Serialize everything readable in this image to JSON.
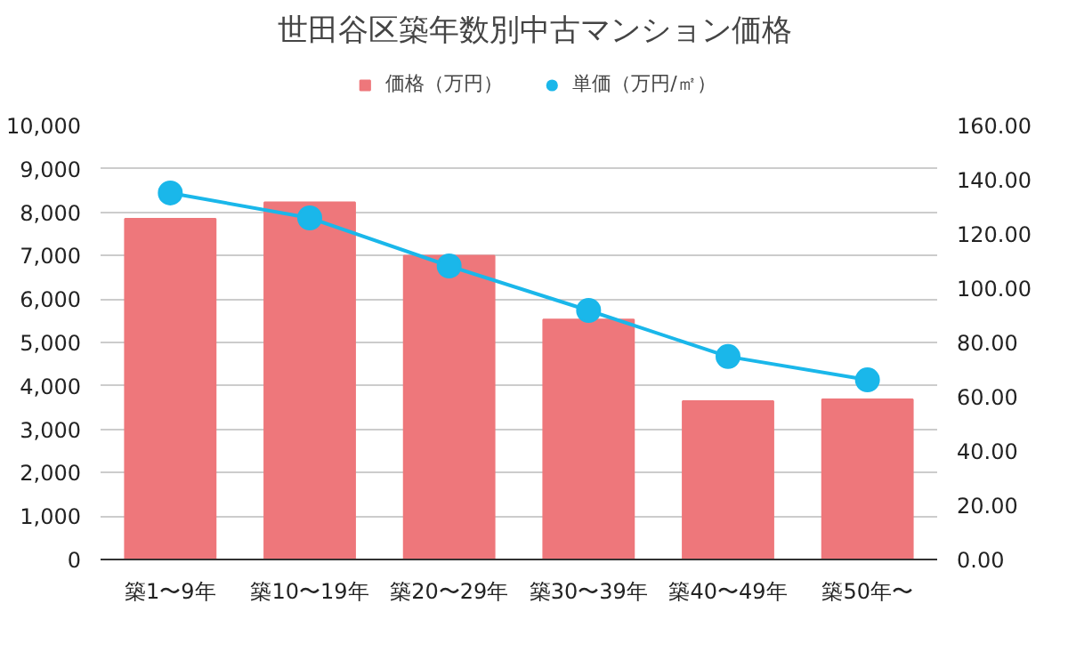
{
  "chart_data": {
    "type": "bar",
    "title": "世田谷区築年数別中古マンション価格",
    "categories": [
      "築1〜9年",
      "築10〜19年",
      "築20〜29年",
      "築30〜39年",
      "築40〜49年",
      "築50年〜"
    ],
    "series": [
      {
        "name": "価格（万円）",
        "color": "#ee777b",
        "values": [
          7850,
          8230,
          7000,
          5530,
          3650,
          3690
        ]
      },
      {
        "name": "単価（万円/㎡）",
        "type": "line",
        "axis": "y2",
        "color": "#1ab7ea",
        "values": [
          135.1,
          125.9,
          108.2,
          91.8,
          74.8,
          66.2
        ]
      }
    ],
    "ylim": [
      0,
      10000
    ],
    "yticks": [
      {
        "value": 0,
        "label": "0"
      },
      {
        "value": 1000,
        "label": "1,000"
      },
      {
        "value": 2000,
        "label": "2,000"
      },
      {
        "value": 3000,
        "label": "3,000"
      },
      {
        "value": 4000,
        "label": "4,000"
      },
      {
        "value": 5000,
        "label": "5,000"
      },
      {
        "value": 6000,
        "label": "6,000"
      },
      {
        "value": 7000,
        "label": "7,000"
      },
      {
        "value": 8000,
        "label": "8,000"
      },
      {
        "value": 9000,
        "label": "9,000"
      },
      {
        "value": 10000,
        "label": "10,000"
      }
    ],
    "y2lim": [
      0,
      160
    ],
    "y2ticks": [
      {
        "value": 0,
        "label": "0.00"
      },
      {
        "value": 20,
        "label": "20.00"
      },
      {
        "value": 40,
        "label": "40.00"
      },
      {
        "value": 60,
        "label": "60.00"
      },
      {
        "value": 80,
        "label": "80.00"
      },
      {
        "value": 100,
        "label": "100.00"
      },
      {
        "value": 120,
        "label": "120.00"
      },
      {
        "value": 140,
        "label": "140.00"
      },
      {
        "value": 160,
        "label": "160.00"
      }
    ],
    "grid": "y",
    "legend": "top",
    "marker": "circle"
  }
}
